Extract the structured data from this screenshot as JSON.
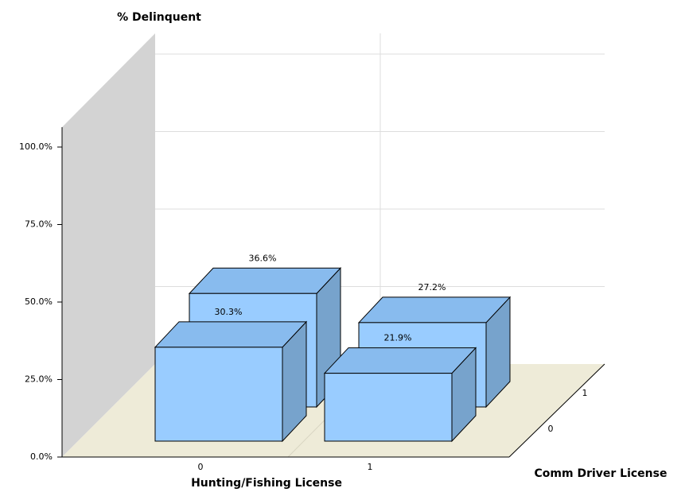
{
  "chart_data": {
    "type": "bar3d",
    "title": "% Delinquent",
    "x_label": "Hunting/Fishing License",
    "z_label": "Comm Driver License",
    "categories": [
      "0",
      "1"
    ],
    "series": [
      {
        "name": "0",
        "color": "#99ccff",
        "values": [
          30.3,
          21.9
        ],
        "value_labels": [
          "30.3%",
          "21.9%"
        ]
      },
      {
        "name": "1",
        "color": "#99ccff",
        "values": [
          36.6,
          27.2
        ],
        "value_labels": [
          "36.6%",
          "27.2%"
        ]
      }
    ],
    "ylim": [
      0,
      100
    ],
    "yticks": [
      {
        "value": 0,
        "label": "0.0%"
      },
      {
        "value": 25,
        "label": "25.0%"
      },
      {
        "value": 50,
        "label": "50.0%"
      },
      {
        "value": 75,
        "label": "75.0%"
      },
      {
        "value": 100,
        "label": "100.0%"
      }
    ],
    "grid": true
  }
}
